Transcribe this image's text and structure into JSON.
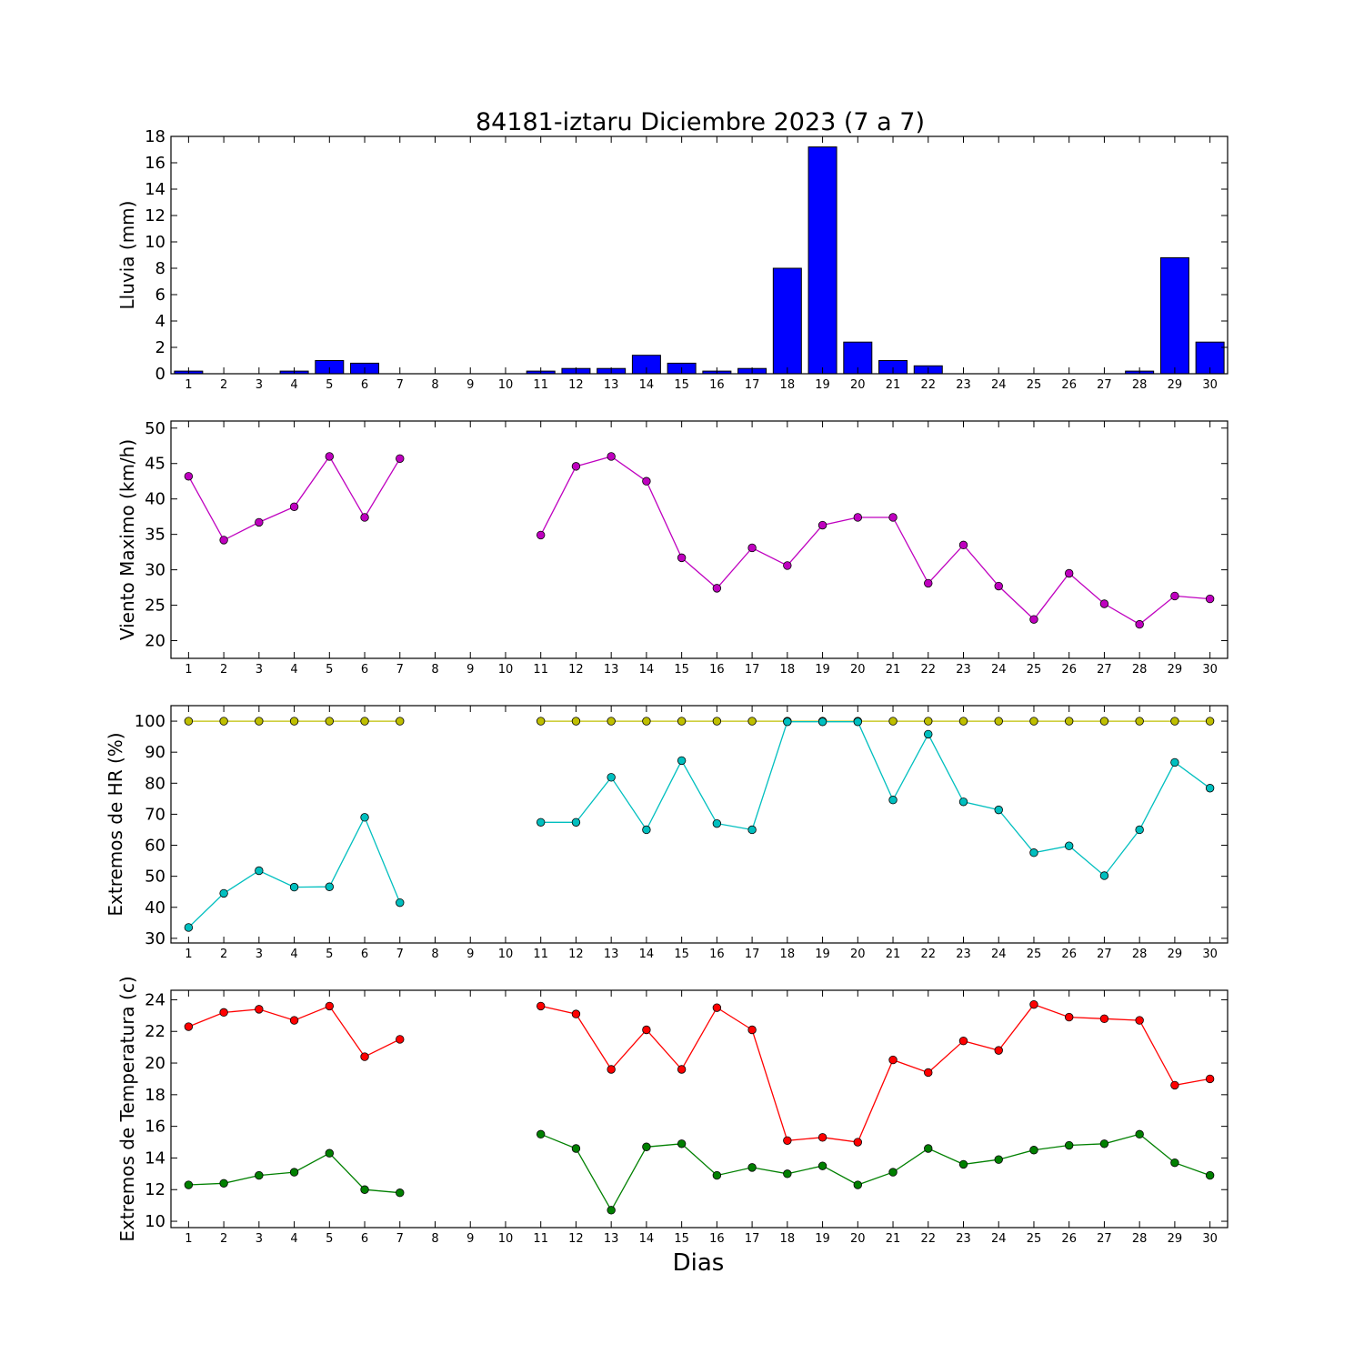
{
  "figure": {
    "title": "84181-iztaru Diciembre 2023  (7 a 7)",
    "xlabel": "Dias"
  },
  "chart_data": [
    {
      "type": "bar",
      "ylabel": "Lluvia (mm)",
      "categories": [
        "1",
        "2",
        "3",
        "4",
        "5",
        "6",
        "7",
        "8",
        "9",
        "10",
        "11",
        "12",
        "13",
        "14",
        "15",
        "16",
        "17",
        "18",
        "19",
        "20",
        "21",
        "22",
        "23",
        "24",
        "25",
        "26",
        "27",
        "28",
        "29",
        "30"
      ],
      "values": [
        0.2,
        0,
        0,
        0.2,
        1.0,
        0.8,
        0,
        null,
        null,
        null,
        0.2,
        0.4,
        0.4,
        1.4,
        0.8,
        0.2,
        0.4,
        8.0,
        17.2,
        2.4,
        1.0,
        0.6,
        0,
        0,
        0,
        0,
        0,
        0.2,
        8.8,
        2.4
      ],
      "ylim": [
        0,
        18
      ],
      "yticks": [
        0,
        2,
        4,
        6,
        8,
        10,
        12,
        14,
        16,
        18
      ],
      "color": "#0000ff"
    },
    {
      "type": "line",
      "ylabel": "Viento Maximo (km/h)",
      "categories": [
        "1",
        "2",
        "3",
        "4",
        "5",
        "6",
        "7",
        "8",
        "9",
        "10",
        "11",
        "12",
        "13",
        "14",
        "15",
        "16",
        "17",
        "18",
        "19",
        "20",
        "21",
        "22",
        "23",
        "24",
        "25",
        "26",
        "27",
        "28",
        "29",
        "30"
      ],
      "series": [
        {
          "values": [
            43.2,
            34.2,
            36.7,
            38.9,
            46.0,
            37.4,
            45.7,
            null,
            null,
            null,
            34.9,
            44.6,
            46.0,
            42.5,
            31.7,
            27.4,
            33.1,
            30.6,
            36.3,
            37.4,
            37.4,
            28.1,
            33.5,
            27.7,
            23.0,
            29.5,
            25.2,
            22.3,
            26.3,
            25.9
          ],
          "color": "#bf00bf"
        }
      ],
      "ylim": [
        17.5,
        51
      ],
      "yticks": [
        20,
        25,
        30,
        35,
        40,
        45,
        50
      ]
    },
    {
      "type": "line",
      "ylabel": "Extremos de HR (%)",
      "categories": [
        "1",
        "2",
        "3",
        "4",
        "5",
        "6",
        "7",
        "8",
        "9",
        "10",
        "11",
        "12",
        "13",
        "14",
        "15",
        "16",
        "17",
        "18",
        "19",
        "20",
        "21",
        "22",
        "23",
        "24",
        "25",
        "26",
        "27",
        "28",
        "29",
        "30"
      ],
      "series": [
        {
          "values": [
            100,
            100,
            100,
            100,
            100,
            100,
            100,
            null,
            null,
            null,
            100,
            100,
            100,
            100,
            100,
            100,
            100,
            100,
            100,
            100,
            100,
            100,
            100,
            100,
            100,
            100,
            100,
            100,
            100,
            100
          ],
          "color": "#bfbf00"
        },
        {
          "values": [
            33.5,
            44.5,
            51.8,
            46.5,
            46.6,
            69.0,
            41.5,
            null,
            null,
            null,
            67.4,
            67.4,
            81.9,
            65.0,
            87.3,
            67.0,
            65.0,
            99.8,
            99.8,
            99.8,
            74.6,
            95.8,
            74.0,
            71.4,
            57.6,
            59.8,
            50.2,
            65.0,
            86.7,
            78.4
          ],
          "color": "#00bfbf"
        }
      ],
      "ylim": [
        28.5,
        105
      ],
      "yticks": [
        30,
        40,
        50,
        60,
        70,
        80,
        90,
        100
      ]
    },
    {
      "type": "line",
      "ylabel": "Extremos de Temperatura (c)",
      "categories": [
        "1",
        "2",
        "3",
        "4",
        "5",
        "6",
        "7",
        "8",
        "9",
        "10",
        "11",
        "12",
        "13",
        "14",
        "15",
        "16",
        "17",
        "18",
        "19",
        "20",
        "21",
        "22",
        "23",
        "24",
        "25",
        "26",
        "27",
        "28",
        "29",
        "30"
      ],
      "series": [
        {
          "values": [
            22.3,
            23.2,
            23.4,
            22.7,
            23.6,
            20.4,
            21.5,
            null,
            null,
            null,
            23.6,
            23.1,
            19.6,
            22.1,
            19.6,
            23.5,
            22.1,
            15.1,
            15.3,
            15.0,
            20.2,
            19.4,
            21.4,
            20.8,
            23.7,
            22.9,
            22.8,
            22.7,
            18.6,
            19.0
          ],
          "color": "#ff0000"
        },
        {
          "values": [
            12.3,
            12.4,
            12.9,
            13.1,
            14.3,
            12.0,
            11.8,
            null,
            null,
            null,
            15.5,
            14.6,
            10.7,
            14.7,
            14.9,
            12.9,
            13.4,
            13.0,
            13.5,
            12.3,
            13.1,
            14.6,
            13.6,
            13.9,
            14.5,
            14.8,
            14.9,
            15.5,
            13.7,
            12.9
          ],
          "color": "#008000"
        }
      ],
      "ylim": [
        9.6,
        24.6
      ],
      "yticks": [
        10,
        12,
        14,
        16,
        18,
        20,
        22,
        24
      ]
    }
  ]
}
